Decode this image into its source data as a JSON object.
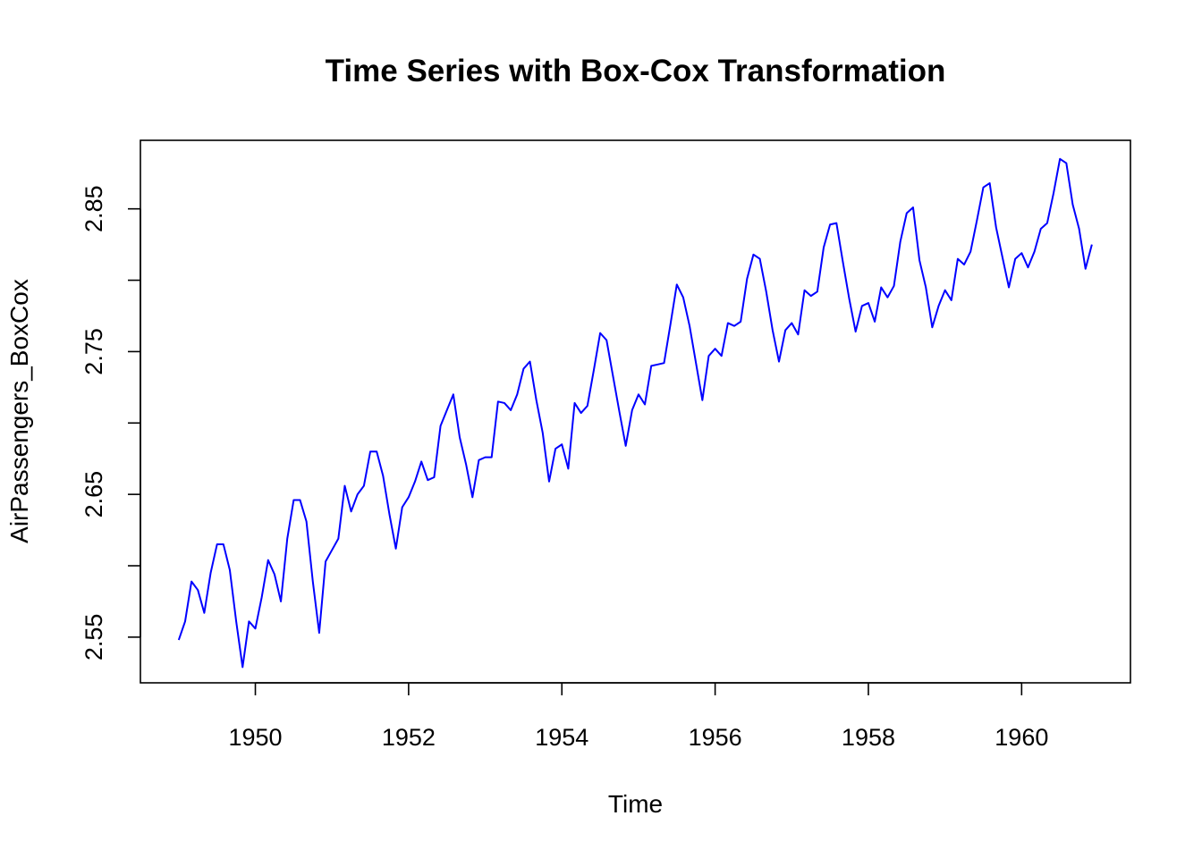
{
  "chart_data": {
    "type": "line",
    "title": "Time Series with Box-Cox Transformation",
    "xlabel": "Time",
    "ylabel": "AirPassengers_BoxCox",
    "xlim": [
      1948.5,
      1961.42
    ],
    "ylim": [
      2.518,
      2.898
    ],
    "xticks": [
      1950,
      1952,
      1954,
      1956,
      1958,
      1960
    ],
    "xtick_labels": [
      "1950",
      "1952",
      "1954",
      "1956",
      "1958",
      "1960"
    ],
    "yticks": [
      2.55,
      2.6,
      2.65,
      2.7,
      2.75,
      2.8,
      2.85
    ],
    "ytick_labels": [
      "2.55",
      "",
      "2.65",
      "",
      "2.75",
      "",
      "2.85"
    ],
    "grid": false,
    "line_color": "#0000ff",
    "series": [
      {
        "start": 1949,
        "frequency": 12,
        "values": [
          2.548,
          2.561,
          2.589,
          2.583,
          2.567,
          2.595,
          2.615,
          2.615,
          2.597,
          2.561,
          2.529,
          2.561,
          2.556,
          2.578,
          2.604,
          2.594,
          2.575,
          2.619,
          2.646,
          2.646,
          2.631,
          2.589,
          2.553,
          2.603,
          2.611,
          2.619,
          2.656,
          2.638,
          2.65,
          2.656,
          2.68,
          2.68,
          2.663,
          2.636,
          2.612,
          2.641,
          2.648,
          2.659,
          2.673,
          2.66,
          2.662,
          2.698,
          2.709,
          2.72,
          2.69,
          2.671,
          2.648,
          2.674,
          2.676,
          2.676,
          2.715,
          2.714,
          2.709,
          2.72,
          2.738,
          2.743,
          2.716,
          2.693,
          2.659,
          2.682,
          2.685,
          2.668,
          2.714,
          2.707,
          2.712,
          2.737,
          2.763,
          2.758,
          2.733,
          2.708,
          2.684,
          2.709,
          2.72,
          2.713,
          2.74,
          2.741,
          2.742,
          2.769,
          2.797,
          2.788,
          2.768,
          2.742,
          2.716,
          2.747,
          2.752,
          2.747,
          2.77,
          2.768,
          2.771,
          2.801,
          2.818,
          2.815,
          2.792,
          2.765,
          2.743,
          2.765,
          2.77,
          2.762,
          2.793,
          2.789,
          2.792,
          2.823,
          2.839,
          2.84,
          2.813,
          2.787,
          2.764,
          2.782,
          2.784,
          2.771,
          2.795,
          2.788,
          2.796,
          2.827,
          2.847,
          2.851,
          2.814,
          2.795,
          2.767,
          2.782,
          2.793,
          2.786,
          2.815,
          2.811,
          2.82,
          2.842,
          2.865,
          2.868,
          2.837,
          2.816,
          2.795,
          2.815,
          2.819,
          2.809,
          2.82,
          2.836,
          2.84,
          2.861,
          2.885,
          2.882,
          2.853,
          2.836,
          2.808,
          2.825
        ]
      }
    ]
  }
}
